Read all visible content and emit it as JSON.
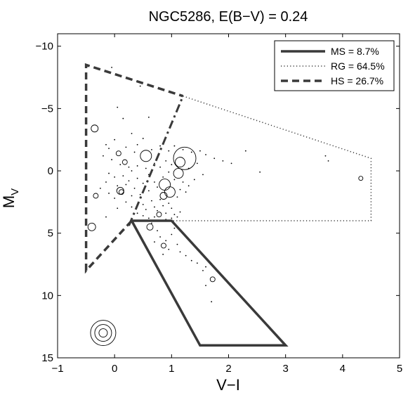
{
  "chart_data": {
    "type": "scatter",
    "title": "NGC5286,  E(B−V) = 0.24",
    "xlabel": "V−I",
    "ylabel_main": "M",
    "ylabel_sub": "V",
    "xlim": [
      -1,
      5
    ],
    "ylim": [
      15,
      -11
    ],
    "y_inverted": true,
    "x_ticks": [
      -1,
      0,
      1,
      2,
      3,
      4,
      5
    ],
    "x_tick_labels": [
      "−1",
      "0",
      "1",
      "2",
      "3",
      "4",
      "5"
    ],
    "y_ticks": [
      -10,
      -5,
      0,
      5,
      10,
      15
    ],
    "y_tick_labels": [
      "−10",
      "−5",
      "0",
      "5",
      "10",
      "15"
    ],
    "grid": false,
    "legend_position": "top-right",
    "regions": [
      {
        "name": "MS",
        "label": "MS = 8.7%",
        "line_style": "solid",
        "polygon": [
          [
            0.3,
            4.0
          ],
          [
            1.0,
            4.0
          ],
          [
            3.0,
            14.0
          ],
          [
            1.5,
            14.0
          ],
          [
            0.3,
            4.0
          ]
        ]
      },
      {
        "name": "RG",
        "label": "RG = 64.5%",
        "line_style": "dotted",
        "polygon": [
          [
            1.2,
            -6.0
          ],
          [
            4.5,
            -1.0
          ],
          [
            4.5,
            4.0
          ],
          [
            0.3,
            4.0
          ]
        ]
      },
      {
        "name": "HS",
        "label": "HS = 26.7%",
        "line_style": "dashed",
        "polygon": [
          [
            0.3,
            4.0
          ],
          [
            -0.5,
            8.0
          ],
          [
            -0.5,
            -8.5
          ],
          [
            1.2,
            -6.0
          ]
        ]
      }
    ],
    "divider": {
      "line_style": "dash-dot",
      "points": [
        [
          0.25,
          4.4
        ],
        [
          1.2,
          -6.0
        ]
      ]
    },
    "circles": [
      {
        "x": -0.35,
        "y": -3.4,
        "size": 5
      },
      {
        "x": 0.07,
        "y": -1.4,
        "size": 3.5
      },
      {
        "x": 0.18,
        "y": -0.7,
        "size": 3.5
      },
      {
        "x": 0.55,
        "y": -1.2,
        "size": 8
      },
      {
        "x": -0.33,
        "y": 2.0,
        "size": 3.5
      },
      {
        "x": -0.4,
        "y": 4.5,
        "size": 5.5
      },
      {
        "x": 0.1,
        "y": 1.6,
        "size": 5
      },
      {
        "x": 0.12,
        "y": 1.7,
        "size": 3.5
      },
      {
        "x": 1.23,
        "y": -1.0,
        "size": 16
      },
      {
        "x": 1.15,
        "y": -0.7,
        "size": 7
      },
      {
        "x": 1.12,
        "y": 0.2,
        "size": 7
      },
      {
        "x": 0.88,
        "y": 1.1,
        "size": 8
      },
      {
        "x": 0.97,
        "y": 1.7,
        "size": 7.5
      },
      {
        "x": 0.86,
        "y": 2.0,
        "size": 5
      },
      {
        "x": 0.78,
        "y": 3.5,
        "size": 3.5
      },
      {
        "x": 0.62,
        "y": 4.5,
        "size": 4.5
      },
      {
        "x": 0.86,
        "y": 6.0,
        "size": 3.5
      },
      {
        "x": 1.72,
        "y": 8.7,
        "size": 3.5
      },
      {
        "x": 4.32,
        "y": 0.6,
        "size": 3
      },
      {
        "x": -0.2,
        "y": 13.0,
        "size": 18
      },
      {
        "x": -0.2,
        "y": 13.0,
        "size": 12
      },
      {
        "x": -0.2,
        "y": 13.0,
        "size": 6
      }
    ],
    "points": [
      [
        -0.05,
        -8.3
      ],
      [
        0.45,
        -6.8
      ],
      [
        0.05,
        -5.1
      ],
      [
        0.15,
        -4.2
      ],
      [
        0.6,
        -4.3
      ],
      [
        0.3,
        -3.0
      ],
      [
        -0.15,
        -2.1
      ],
      [
        -0.1,
        -1.8
      ],
      [
        0.0,
        -2.5
      ],
      [
        0.2,
        -1.9
      ],
      [
        0.35,
        -1.5
      ],
      [
        0.4,
        -2.1
      ],
      [
        0.5,
        -2.6
      ],
      [
        0.65,
        -1.7
      ],
      [
        0.8,
        -2.0
      ],
      [
        0.95,
        -1.6
      ],
      [
        1.05,
        -2.0
      ],
      [
        1.2,
        -1.7
      ],
      [
        1.35,
        -1.5
      ],
      [
        1.5,
        -1.6
      ],
      [
        1.6,
        -1.3
      ],
      [
        1.75,
        -1.0
      ],
      [
        1.9,
        -0.8
      ],
      [
        2.05,
        -0.6
      ],
      [
        2.3,
        -1.6
      ],
      [
        2.55,
        0.1
      ],
      [
        3.7,
        -1.2
      ],
      [
        3.75,
        -0.8
      ],
      [
        -0.2,
        -1.2
      ],
      [
        -0.05,
        -0.9
      ],
      [
        0.1,
        -0.5
      ],
      [
        0.25,
        -0.3
      ],
      [
        0.3,
        0.0
      ],
      [
        0.4,
        -0.4
      ],
      [
        0.55,
        -0.2
      ],
      [
        0.7,
        -0.6
      ],
      [
        0.8,
        -0.3
      ],
      [
        0.9,
        -0.8
      ],
      [
        1.0,
        -0.5
      ],
      [
        1.3,
        -0.2
      ],
      [
        1.45,
        -0.6
      ],
      [
        1.55,
        0.3
      ],
      [
        -0.1,
        0.2
      ],
      [
        0.0,
        0.5
      ],
      [
        0.15,
        0.4
      ],
      [
        0.25,
        0.8
      ],
      [
        0.4,
        0.6
      ],
      [
        0.5,
        1.0
      ],
      [
        0.6,
        0.3
      ],
      [
        0.7,
        0.9
      ],
      [
        0.85,
        0.5
      ],
      [
        0.95,
        0.1
      ],
      [
        1.05,
        0.7
      ],
      [
        1.2,
        0.9
      ],
      [
        1.3,
        1.2
      ],
      [
        1.4,
        0.7
      ],
      [
        -0.15,
        0.9
      ],
      [
        0.05,
        1.2
      ],
      [
        0.2,
        1.1
      ],
      [
        0.35,
        1.4
      ],
      [
        0.45,
        1.9
      ],
      [
        0.6,
        1.6
      ],
      [
        0.75,
        1.3
      ],
      [
        0.8,
        2.3
      ],
      [
        0.95,
        2.6
      ],
      [
        1.1,
        2.1
      ],
      [
        1.15,
        1.5
      ],
      [
        1.25,
        1.7
      ],
      [
        -0.1,
        1.8
      ],
      [
        0.0,
        2.2
      ],
      [
        0.2,
        2.5
      ],
      [
        0.3,
        2.0
      ],
      [
        0.5,
        2.7
      ],
      [
        0.55,
        3.1
      ],
      [
        0.65,
        2.4
      ],
      [
        0.7,
        2.9
      ],
      [
        0.75,
        3.2
      ],
      [
        0.85,
        2.8
      ],
      [
        0.9,
        3.4
      ],
      [
        1.0,
        3.0
      ],
      [
        1.05,
        3.5
      ],
      [
        1.15,
        3.3
      ],
      [
        0.4,
        3.4
      ],
      [
        0.5,
        3.6
      ],
      [
        0.6,
        3.8
      ],
      [
        0.7,
        3.7
      ],
      [
        0.9,
        3.9
      ],
      [
        1.0,
        3.8
      ],
      [
        1.1,
        3.7
      ],
      [
        -0.15,
        3.7
      ],
      [
        0.65,
        4.2
      ],
      [
        0.75,
        4.8
      ],
      [
        0.8,
        5.3
      ],
      [
        0.9,
        5.6
      ],
      [
        0.95,
        6.3
      ],
      [
        1.0,
        5.1
      ],
      [
        1.05,
        4.6
      ],
      [
        1.1,
        5.9
      ],
      [
        1.15,
        6.5
      ],
      [
        1.25,
        6.8
      ],
      [
        1.35,
        7.2
      ],
      [
        1.45,
        7.4
      ],
      [
        1.55,
        8.0
      ],
      [
        1.6,
        7.7
      ],
      [
        0.7,
        5.7
      ],
      [
        0.85,
        6.7
      ],
      [
        1.7,
        10.5
      ],
      [
        1.6,
        9.2
      ],
      [
        0.05,
        3.0
      ],
      [
        0.3,
        2.9
      ],
      [
        -0.25,
        1.4
      ]
    ]
  }
}
